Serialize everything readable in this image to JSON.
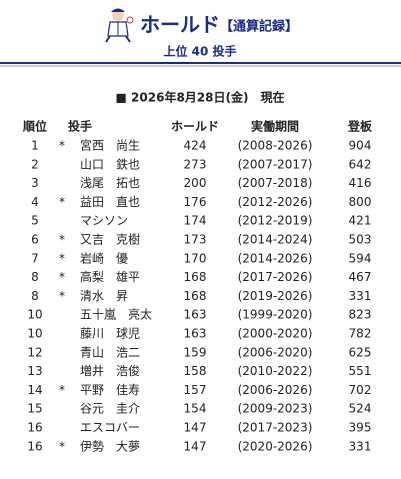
{
  "header": {
    "title": "ホールド",
    "suffix": "【通算記録】",
    "subtitle": "上位 40 投手",
    "date": "■ 2026年8月28日(金)　現在"
  },
  "table": {
    "columns": [
      "順位",
      "投手",
      "ホールド",
      "実働期間",
      "登板"
    ],
    "rows": [
      [
        1,
        "*",
        "宮西　尚生",
        424,
        "(2008-2026)",
        904
      ],
      [
        2,
        null,
        "山口　鉄也",
        273,
        "(2007-2017)",
        642
      ],
      [
        3,
        null,
        "浅尾　拓也",
        200,
        "(2007-2018)",
        416
      ],
      [
        4,
        "*",
        "益田　直也",
        176,
        "(2012-2026)",
        800
      ],
      [
        5,
        null,
        "マシソン",
        174,
        "(2012-2019)",
        421
      ],
      [
        6,
        "*",
        "又吉　克樹",
        173,
        "(2014-2024)",
        503
      ],
      [
        7,
        "*",
        "岩崎　優",
        170,
        "(2014-2026)",
        594
      ],
      [
        8,
        "*",
        "高梨　雄平",
        168,
        "(2017-2026)",
        467
      ],
      [
        8,
        "*",
        "清水　昇",
        168,
        "(2019-2026)",
        331
      ],
      [
        10,
        null,
        "五十嵐　亮太",
        163,
        "(1999-2020)",
        823
      ],
      [
        10,
        null,
        "藤川　球児",
        163,
        "(2000-2020)",
        782
      ],
      [
        12,
        null,
        "青山　浩二",
        159,
        "(2006-2020)",
        625
      ],
      [
        13,
        null,
        "増井　浩俊",
        158,
        "(2010-2022)",
        551
      ],
      [
        14,
        "*",
        "平野　佳寿",
        157,
        "(2006-2026)",
        702
      ],
      [
        15,
        null,
        "谷元　圭介",
        154,
        "(2009-2023)",
        524
      ],
      [
        16,
        null,
        "エスコバー",
        147,
        "(2017-2023)",
        395
      ],
      [
        16,
        "*",
        "伊勢　大夢",
        147,
        "(2020-2026)",
        331
      ]
    ]
  }
}
